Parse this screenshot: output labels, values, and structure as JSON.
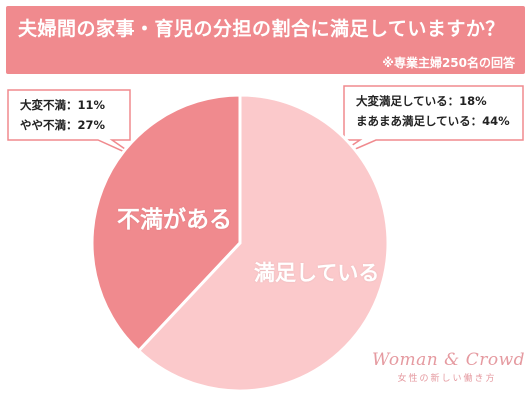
{
  "header": {
    "title": "夫婦間の家事・育児の分担の割合に満足していますか？",
    "subtitle": "※専業主婦250名の回答"
  },
  "callouts": {
    "dissatisfied": [
      {
        "label": "大変不満：11%"
      },
      {
        "label": "やや不満：27%"
      }
    ],
    "satisfied": [
      {
        "label": "大変満足している：18%"
      },
      {
        "label": "まあまあ満足している：44%"
      }
    ]
  },
  "brand": {
    "name": "Woman & Crowd",
    "tagline": "女性の新しい働き方"
  },
  "colors": {
    "header_bg": "#f08a8e",
    "dissatisfied_fill": "#f08a8e",
    "satisfied_fill": "#fbc9cb",
    "callout_border": "#f08a8e"
  },
  "chart_data": {
    "type": "pie",
    "title": "夫婦間の家事・育児の分担の割合に満足していますか？",
    "slices": [
      {
        "label": "不満がある",
        "value": 38,
        "color": "#f08a8e"
      },
      {
        "label": "満足している",
        "value": 62,
        "color": "#fbc9cb"
      }
    ],
    "breakdown": {
      "不満がある": [
        {
          "label": "大変不満",
          "value": 11
        },
        {
          "label": "やや不満",
          "value": 27
        }
      ],
      "満足している": [
        {
          "label": "大変満足している",
          "value": 18
        },
        {
          "label": "まあまあ満足している",
          "value": 44
        }
      ]
    }
  }
}
